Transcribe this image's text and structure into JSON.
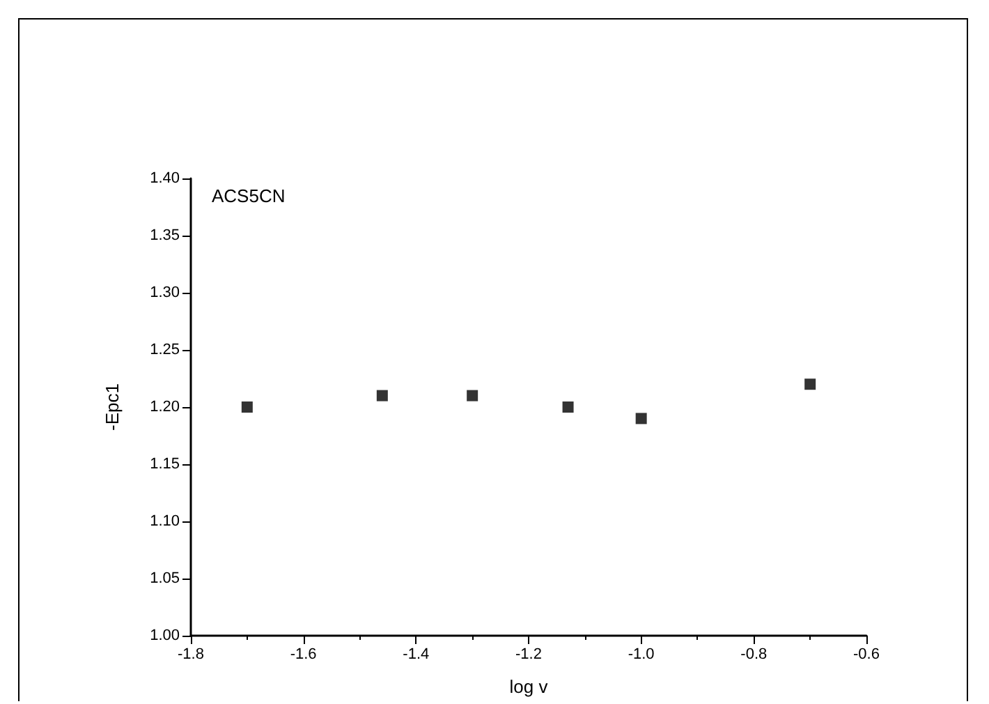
{
  "chart_data": {
    "type": "scatter",
    "xlabel": "log v",
    "ylabel": "-Epc1",
    "annotations": [
      "ACS5CN"
    ],
    "x": [
      -1.7,
      -1.46,
      -1.3,
      -1.13,
      -1.0,
      -0.7
    ],
    "series": [
      {
        "color": "#000000",
        "values": [
          1.2,
          1.21,
          1.21,
          1.2,
          1.19,
          1.22
        ]
      }
    ],
    "xlim": [
      -1.8,
      -0.6
    ],
    "xticks": [
      -1.8,
      -1.6,
      -1.4,
      -1.2,
      {
        "value": -1,
        "label": "-1.0"
      },
      -0.8,
      -0.6
    ],
    "ylim": [
      1.0,
      1.4
    ],
    "yticks": [
      {
        "value": 1,
        "label": "1.00"
      },
      1.05,
      {
        "value": 1.1,
        "label": "1.10"
      },
      1.15,
      {
        "value": 1.2,
        "label": "1.20"
      },
      1.25,
      {
        "value": 1.3,
        "label": "1.30"
      },
      1.35,
      {
        "value": 1.4,
        "label": "1.40"
      }
    ],
    "marker": "square",
    "grid": false
  }
}
